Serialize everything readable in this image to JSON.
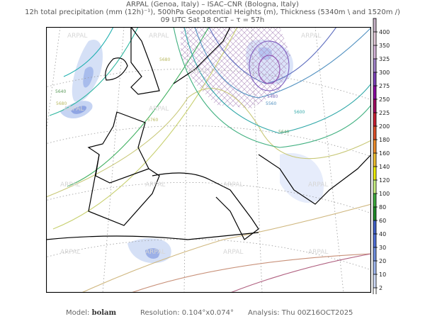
{
  "header": {
    "line1": "ARPAL (Genoa, Italy)  –  ISAC–CNR (Bologna, Italy)",
    "line2": "12h total precipitation (mm (12h)⁻¹), 500hPa Geopotential Heights (m), Thickness (5340m \\ and 1520m /)",
    "line3": "09 UTC Sat 18 OCT  –  τ = 57h"
  },
  "map": {
    "watermark": "ARPAL",
    "contour_labels": [
      "5640",
      "5680",
      "5760",
      "5680",
      "5480",
      "5560",
      "5600",
      "5640",
      "5640"
    ]
  },
  "colorbar": {
    "ticks": [
      "400",
      "350",
      "325",
      "300",
      "275",
      "250",
      "225",
      "200",
      "180",
      "160",
      "140",
      "120",
      "100",
      "80",
      "60",
      "40",
      "30",
      "20",
      "10",
      "2"
    ],
    "colors": [
      "#c8b4c8",
      "#e2c8d8",
      "#d4b4d8",
      "#a080c8",
      "#7c40b8",
      "#8a0aa0",
      "#a00a60",
      "#c81e32",
      "#e05028",
      "#f08c28",
      "#f0c030",
      "#f0f000",
      "#c8f080",
      "#3caa3c",
      "#1e8c28",
      "#4060c8",
      "#5070d8",
      "#7090e0",
      "#a0b8f0",
      "#d0dcf8",
      "#ffffff"
    ]
  },
  "footer": {
    "model_label": "Model:",
    "model_value": "bolam",
    "resolution": "Resolution:  0.104°x0.074°",
    "analysis": "Analysis:  Thu  00Z16OCT2025"
  }
}
